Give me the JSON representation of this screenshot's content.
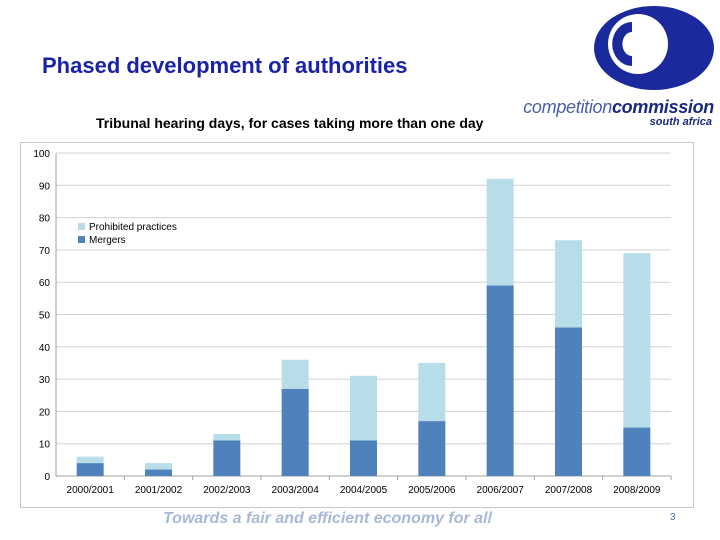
{
  "slide": {
    "title": "Phased development of authorities",
    "footer": "Towards a fair and efficient economy for all",
    "page_number": "3"
  },
  "logo": {
    "word1": "competition",
    "word2": "commission",
    "subtitle": "south africa"
  },
  "colors": {
    "mergers": "#4f81bd",
    "prohibited_practices": "#b7dde8",
    "logo_blue": "#1a2a9c"
  },
  "chart_data": {
    "type": "bar",
    "stacked": true,
    "title": "Tribunal hearing days, for cases taking more than one day",
    "xlabel": "",
    "ylabel": "",
    "categories": [
      "2000/2001",
      "2001/2002",
      "2002/2003",
      "2003/2004",
      "2004/2005",
      "2005/2006",
      "2006/2007",
      "2007/2008",
      "2008/2009"
    ],
    "series": [
      {
        "name": "Mergers",
        "values": [
          4,
          2,
          11,
          27,
          11,
          17,
          59,
          46,
          15
        ]
      },
      {
        "name": "Prohibited practices",
        "values": [
          2,
          2,
          2,
          9,
          20,
          18,
          33,
          27,
          54
        ]
      }
    ],
    "ylim": [
      0,
      100
    ],
    "yticks": [
      0,
      10,
      20,
      30,
      40,
      50,
      60,
      70,
      80,
      90,
      100
    ],
    "grid": true,
    "legend_position": "top-left"
  }
}
